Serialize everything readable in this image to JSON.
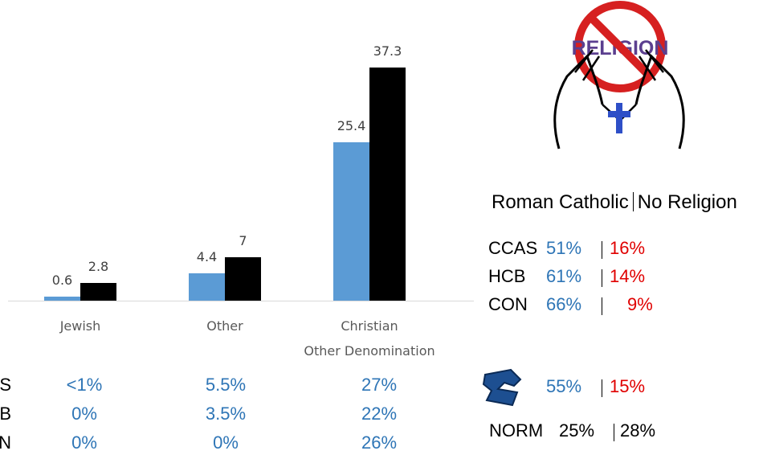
{
  "chart_data": {
    "type": "bar",
    "categories": [
      "Jewish",
      "Other",
      "Christian\nOther Denomination"
    ],
    "series": [
      {
        "color": "#5b9bd5",
        "values": [
          0.6,
          4.4,
          25.4
        ]
      },
      {
        "color": "#000000",
        "values": [
          2.8,
          7,
          37.3
        ]
      }
    ],
    "ylim": [
      0,
      40
    ]
  },
  "left_table": {
    "rows": [
      {
        "label": "CCAS",
        "cells": [
          "<1%",
          "5.5%",
          "27%"
        ]
      },
      {
        "label": "HCB",
        "cells": [
          "0%",
          "3.5%",
          "22%"
        ]
      },
      {
        "label": "CON",
        "cells": [
          "0%",
          "0%",
          "26%"
        ]
      }
    ]
  },
  "icon_text": "RELIGION",
  "right_panel": {
    "header": {
      "left": "Roman Catholic",
      "right": "No Religion"
    },
    "rows": [
      {
        "label": "CCAS",
        "catholic": "51%",
        "none": "16%"
      },
      {
        "label": "HCB",
        "catholic": "61%",
        "none": "14%"
      },
      {
        "label": "CON",
        "catholic": "66%",
        "none": "9%"
      },
      {
        "catholic": "55%",
        "none": "15%"
      },
      {
        "label": "NORM",
        "catholic": "25%",
        "none": "28%"
      }
    ]
  }
}
